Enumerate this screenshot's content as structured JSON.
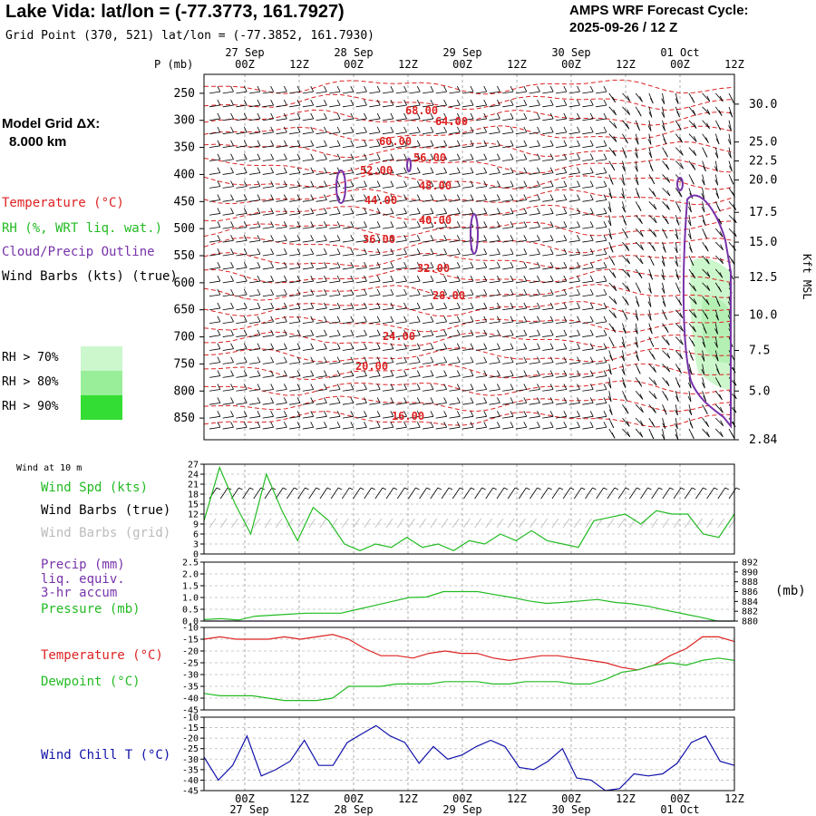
{
  "header": {
    "title": "Lake Vida:  lat/lon = (-77.3773, 161.7927)",
    "grid_point": "Grid Point (370, 521) lat/lon = (-77.3852, 161.7930)",
    "cycle_title": "AMPS WRF Forecast Cycle:",
    "cycle_value": "2025-09-26 / 12  Z"
  },
  "model_grid": {
    "label": "Model Grid ΔX:",
    "value": "8.000 km"
  },
  "legends": {
    "temperature": "Temperature (°C)",
    "rh": "RH (%, WRT liq. wat.)",
    "cloud": "Cloud/Precip Outline",
    "wind": "Wind Barbs (kts) (true)"
  },
  "rh_thresholds": [
    {
      "label": "RH > 70%",
      "color": "#ccf7cc"
    },
    {
      "label": "RH > 80%",
      "color": "#99ee99"
    },
    {
      "label": "RH > 90%",
      "color": "#33dd33"
    }
  ],
  "time_axis": {
    "top_dates": [
      "27 Sep",
      "28 Sep",
      "29 Sep",
      "30 Sep",
      "01 Oct"
    ],
    "bottom_dates": [
      "27 Sep",
      "28 Sep",
      "29 Sep",
      "30 Sep",
      "01 Oct"
    ],
    "hour_labels": [
      "00Z",
      "12Z",
      "00Z",
      "12Z",
      "00Z",
      "12Z",
      "00Z",
      "12Z",
      "00Z",
      "12Z"
    ]
  },
  "chart_data": [
    {
      "type": "contour",
      "title": "",
      "ylabel": "P (mb)",
      "y2label": "Kft MSL",
      "pressure_ticks": [
        250,
        300,
        350,
        400,
        450,
        500,
        550,
        600,
        650,
        700,
        750,
        800,
        850
      ],
      "height_ticks": [
        "30.0",
        "25.0",
        "22.5",
        "20.0",
        "17.5",
        "15.0",
        "12.5",
        "10.0",
        "7.5",
        "5.0",
        "2.84"
      ],
      "height_pressures": [
        270,
        340,
        375,
        410,
        470,
        525,
        590,
        660,
        725,
        800,
        890
      ],
      "rh_contour_labels": [
        "68.00",
        "64.00",
        "60.00",
        "56.00",
        "52.00",
        "48.00",
        "44.00",
        "40.00",
        "36.00",
        "32.00",
        "28.00",
        "24.00",
        "20.00",
        "16.00"
      ]
    },
    {
      "type": "line",
      "title": "Wind at 10 m",
      "series": [
        {
          "name": "Wind Spd (kts)",
          "color": "#22bb22",
          "values": [
            10,
            26,
            15,
            6,
            24,
            13,
            4,
            14,
            10,
            3,
            1,
            3,
            2,
            5,
            2,
            3,
            1,
            4,
            3,
            6,
            4,
            7,
            4,
            3,
            2,
            10,
            11,
            12,
            9,
            13,
            12,
            12,
            6,
            5,
            12
          ]
        }
      ],
      "extra_labels": [
        "Wind Barbs (true)",
        "Wind Barbs (grid)"
      ],
      "ylim": [
        0,
        27
      ],
      "yticks": [
        "0",
        "3",
        "6",
        "9",
        "12",
        "15",
        "18",
        "21",
        "24",
        "27"
      ]
    },
    {
      "type": "line",
      "series": [
        {
          "name": "Pressure (mb)",
          "color": "#22bb22",
          "values": [
            880.3,
            880.5,
            880.2,
            881.0,
            881.2,
            881.4,
            881.6,
            881.6,
            881.6,
            882.4,
            883.2,
            884.0,
            884.8,
            884.9,
            886.0,
            886.0,
            886.0,
            885.4,
            884.8,
            884.1,
            883.6,
            883.8,
            884.1,
            884.4,
            883.8,
            883.5,
            883.0,
            882.2,
            881.5,
            880.8,
            880.0,
            880.0
          ]
        },
        {
          "name": "Precip (mm)",
          "color": "#8844aa",
          "values": [
            0.0,
            0.0,
            0.0,
            0.0,
            0.0,
            0.0,
            0.0,
            0.0,
            0.0,
            0.0,
            0.0,
            0.0,
            0.0,
            0.0,
            0.0,
            0.0,
            0.0,
            0.0,
            0.0,
            0.0,
            0.0,
            0.0,
            0.0,
            0.0,
            0.0,
            0.0,
            0.0,
            0.0,
            0.0,
            0.0,
            0.0,
            0.0
          ]
        }
      ],
      "extra_labels": [
        "liq. equiv.",
        "3-hr accum"
      ],
      "ylim_left": [
        0,
        2.5
      ],
      "yticks_left": [
        "0.0",
        "0.5",
        "1.0",
        "1.5",
        "2.0",
        "2.5"
      ],
      "ylim_right": [
        880,
        892
      ],
      "yticks_right": [
        "880",
        "882",
        "884",
        "886",
        "888",
        "890",
        "892"
      ],
      "right_unit": "(mb)"
    },
    {
      "type": "line",
      "series": [
        {
          "name": "Temperature (°C)",
          "color": "#dd2222",
          "values": [
            -15,
            -14,
            -15,
            -15,
            -15,
            -14,
            -15,
            -14,
            -13,
            -15,
            -19,
            -22,
            -22,
            -23,
            -21,
            -20,
            -21,
            -21,
            -23,
            -24,
            -23,
            -22,
            -22,
            -23,
            -24,
            -25,
            -27,
            -28,
            -26,
            -22,
            -19,
            -14,
            -14,
            -16
          ]
        },
        {
          "name": "Dewpoint (°C)",
          "color": "#22bb22",
          "values": [
            -38,
            -39,
            -39,
            -39,
            -40,
            -41,
            -41,
            -41,
            -40,
            -35,
            -35,
            -35,
            -34,
            -34,
            -34,
            -33,
            -33,
            -33,
            -34,
            -34,
            -33,
            -33,
            -33,
            -34,
            -34,
            -32,
            -29,
            -28,
            -26,
            -25,
            -26,
            -24,
            -23,
            -24
          ]
        }
      ],
      "ylim": [
        -45,
        -10
      ],
      "yticks": [
        "-10",
        "-15",
        "-20",
        "-25",
        "-30",
        "-35",
        "-40",
        "-45"
      ]
    },
    {
      "type": "line",
      "series": [
        {
          "name": "Wind Chill T (°C)",
          "color": "#1111aa",
          "values": [
            -29,
            -40,
            -33,
            -19,
            -38,
            -35,
            -31,
            -21,
            -33,
            -33,
            -22,
            -18,
            -14,
            -19,
            -22,
            -32,
            -24,
            -30,
            -28,
            -24,
            -21,
            -24,
            -34,
            -35,
            -31,
            -25,
            -39,
            -40,
            -45,
            -44,
            -37,
            -38,
            -37,
            -32,
            -22,
            -19,
            -31,
            -33
          ]
        }
      ],
      "ylim": [
        -45,
        -10
      ],
      "yticks": [
        "-10",
        "-15",
        "-20",
        "-25",
        "-30",
        "-35",
        "-40",
        "-45"
      ]
    }
  ]
}
